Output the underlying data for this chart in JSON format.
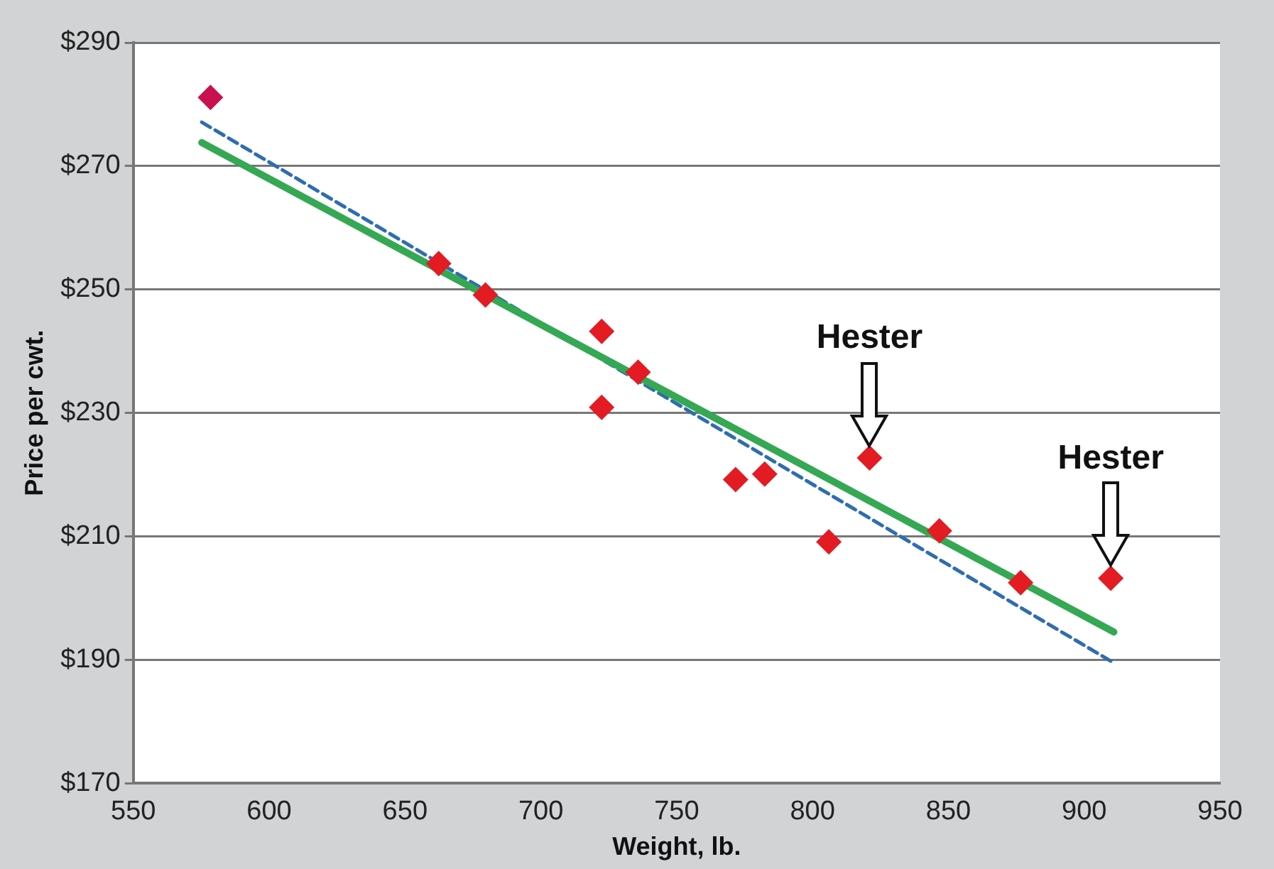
{
  "chart_data": {
    "type": "scatter",
    "xlabel": "Weight, lb.",
    "ylabel": "Price per cwt.",
    "xlim": [
      550,
      950
    ],
    "xticks": [
      550,
      600,
      650,
      700,
      750,
      800,
      850,
      900,
      950
    ],
    "ylim": [
      170,
      290
    ],
    "yticks": [
      {
        "value": 170,
        "label": "$170"
      },
      {
        "value": 190,
        "label": "$190"
      },
      {
        "value": 210,
        "label": "$210"
      },
      {
        "value": 230,
        "label": "$230"
      },
      {
        "value": 250,
        "label": "$250"
      },
      {
        "value": 270,
        "label": "$270"
      },
      {
        "value": 290,
        "label": "$290"
      }
    ],
    "grid": "y",
    "marker": "diamond",
    "series": [
      {
        "x": [
          578.4,
          662.4,
          679.6,
          722.4,
          722.4,
          735.8,
          771.7,
          782.4,
          806,
          821,
          846.7,
          876.6,
          909.8
        ],
        "values": [
          281.1,
          254.2,
          249.1,
          243.2,
          230.9,
          236.6,
          219.2,
          220.1,
          209.1,
          222.7,
          210.9,
          202.5,
          203.2
        ],
        "colors": [
          "#c8124f",
          "#e31b23",
          "#e31b23",
          "#e31b23",
          "#e31b23",
          "#e31b23",
          "#e31b23",
          "#e31b23",
          "#e31b23",
          "#e31b23",
          "#e31b23",
          "#e31b23",
          "#e31b23"
        ]
      },
      {
        "type": "line",
        "marker": "none",
        "line_style": "solid",
        "color": "#35a853",
        "x": [
          575.2,
          910.9
        ],
        "values": [
          273.8,
          194.5
        ]
      },
      {
        "type": "line",
        "marker": "none",
        "line_style": "dashed",
        "color": "#2e6db0",
        "x": [
          575.2,
          910.9
        ],
        "values": [
          277.1,
          189.5
        ]
      }
    ],
    "annotations": [
      {
        "text": "Hester",
        "x": 821,
        "y": 222.7
      },
      {
        "text": "Hester",
        "x": 909.8,
        "y": 203.2
      }
    ]
  }
}
